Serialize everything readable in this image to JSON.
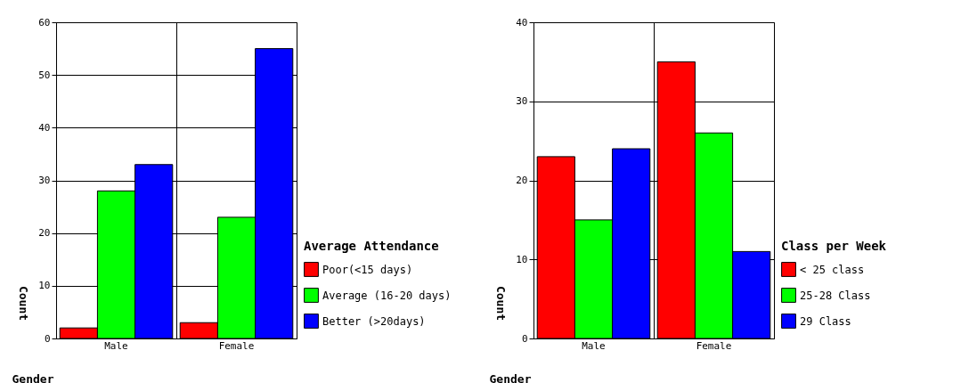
{
  "chart_data": [
    {
      "type": "bar",
      "xlabel": "Gender",
      "ylabel": "Count",
      "legend_title": "Average Attendance",
      "categories": [
        "Male",
        "Female"
      ],
      "series": [
        {
          "name": "Poor(<15 days)",
          "color": "#ff0000",
          "values": [
            2,
            3
          ]
        },
        {
          "name": "Average (16-20 days)",
          "color": "#00ff00",
          "values": [
            28,
            23
          ]
        },
        {
          "name": "Better (>20days)",
          "color": "#0000ff",
          "values": [
            33,
            55
          ]
        }
      ],
      "ylim": [
        0,
        60
      ],
      "yticks": [
        0,
        10,
        20,
        30,
        40,
        50,
        60
      ],
      "grid": true,
      "legend": "right"
    },
    {
      "type": "bar",
      "xlabel": "Gender",
      "ylabel": "Count",
      "legend_title": "Class per Week",
      "categories": [
        "Male",
        "Female"
      ],
      "series": [
        {
          "name": "< 25 class",
          "color": "#ff0000",
          "values": [
            23,
            35
          ]
        },
        {
          "name": "25-28 Class",
          "color": "#00ff00",
          "values": [
            15,
            26
          ]
        },
        {
          "name": "29 Class",
          "color": "#0000ff",
          "values": [
            24,
            11
          ]
        }
      ],
      "ylim": [
        0,
        40
      ],
      "yticks": [
        0,
        10,
        20,
        30,
        40
      ],
      "grid": true,
      "legend": "right"
    }
  ]
}
